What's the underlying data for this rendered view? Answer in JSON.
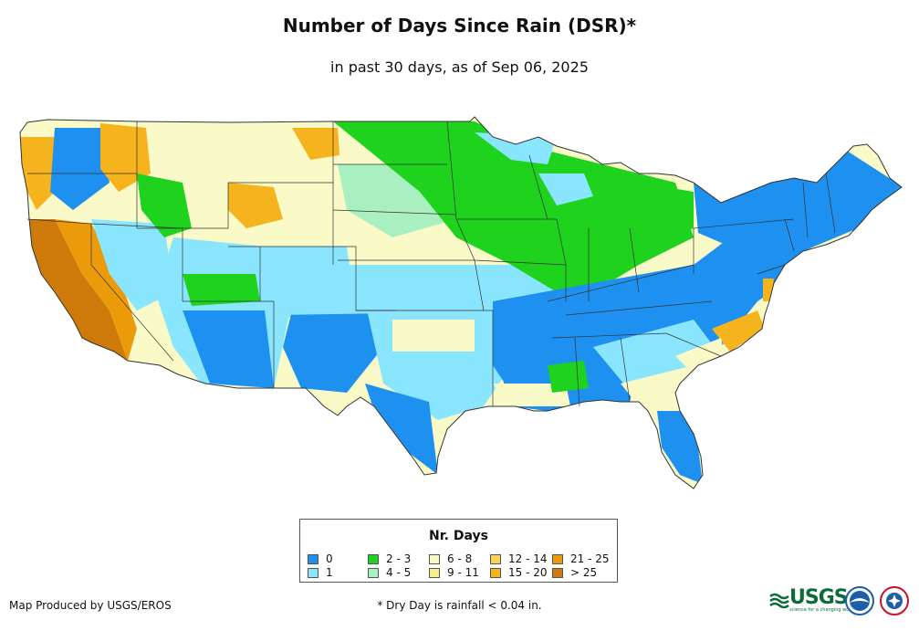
{
  "title": "Number of Days Since Rain (DSR)*",
  "subtitle": "in past 30 days, as of Sep 06, 2025",
  "legend": {
    "title": "Nr. Days",
    "items": [
      {
        "label": "0",
        "color": "#1e90f0"
      },
      {
        "label": "1",
        "color": "#8ae6ff"
      },
      {
        "label": "2 - 3",
        "color": "#1ed21e"
      },
      {
        "label": "4 - 5",
        "color": "#a8f0c0"
      },
      {
        "label": "6 - 8",
        "color": "#fafac8"
      },
      {
        "label": "9 - 11",
        "color": "#f5f08c"
      },
      {
        "label": "12 - 14",
        "color": "#fad25a"
      },
      {
        "label": "15 - 20",
        "color": "#f5b41e"
      },
      {
        "label": "21 - 25",
        "color": "#eb9b0a"
      },
      {
        "label": "> 25",
        "color": "#cd7a0a"
      }
    ]
  },
  "producer": "Map Produced by USGS/EROS",
  "footnote": "* Dry Day is rainfall < 0.04 in.",
  "logos": {
    "usgs_text": "USGS",
    "usgs_tagline": "science for a changing world",
    "noaa": "noaa-logo",
    "nws": "nws-logo"
  }
}
